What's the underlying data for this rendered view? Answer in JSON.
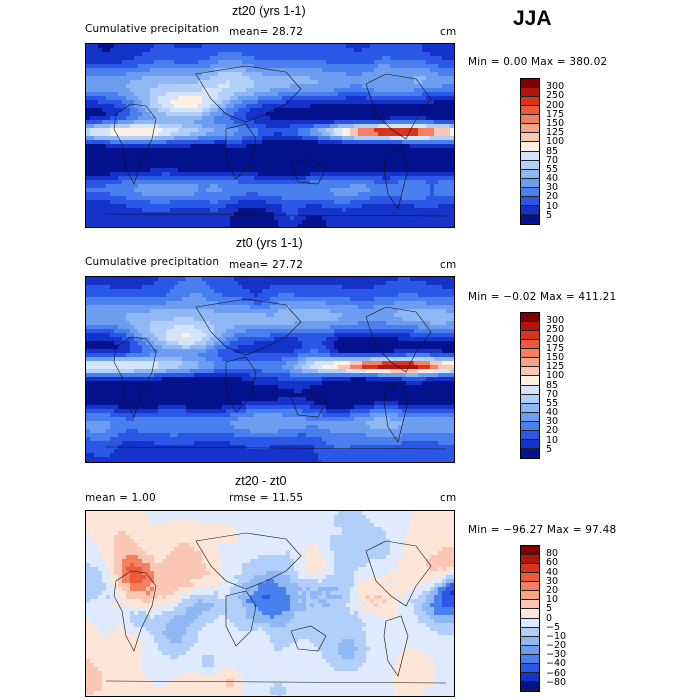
{
  "season_label": "JJA",
  "panels": [
    {
      "title": "zt20 (yrs 1-1)",
      "subtitle": "Cumulative precipitation",
      "mean_text": "mean=   28.72",
      "units": "cm",
      "minmax_text": "Min =    0.00 Max = 380.02",
      "palette": "precip",
      "colorbar_labels": [
        "300",
        "250",
        "200",
        "175",
        "150",
        "125",
        "100",
        "85",
        "70",
        "55",
        "40",
        "30",
        "20",
        "10",
        "5"
      ],
      "colorbar_colors": [
        "#7f0000",
        "#b0160c",
        "#d9341c",
        "#ec5a37",
        "#f58060",
        "#f8a286",
        "#fac7b4",
        "#fdf1e4",
        "#d4e4fb",
        "#b1cff8",
        "#8fb7f3",
        "#6d9df0",
        "#4a7ff0",
        "#2a57e6",
        "#1532cb",
        "#04128e"
      ]
    },
    {
      "title": "zt0 (yrs 1-1)",
      "subtitle": "Cumulative precipitation",
      "mean_text": "mean=   27.72",
      "units": "cm",
      "minmax_text": "Min =  −0.02 Max = 411.21",
      "palette": "precip",
      "colorbar_labels": [
        "300",
        "250",
        "200",
        "175",
        "150",
        "125",
        "100",
        "85",
        "70",
        "55",
        "40",
        "30",
        "20",
        "10",
        "5"
      ],
      "colorbar_colors": [
        "#7f0000",
        "#b0160c",
        "#d9341c",
        "#ec5a37",
        "#f58060",
        "#f8a286",
        "#fac7b4",
        "#fdf1e4",
        "#d4e4fb",
        "#b1cff8",
        "#8fb7f3",
        "#6d9df0",
        "#4a7ff0",
        "#2a57e6",
        "#1532cb",
        "#04128e"
      ]
    },
    {
      "title": "zt20 - zt0",
      "mean_text": "mean =     1.00",
      "rmse_text": "rmse =   11.55",
      "units": "cm",
      "minmax_text": "Min = −96.27 Max =  97.48",
      "palette": "diff",
      "colorbar_labels": [
        "80",
        "60",
        "40",
        "30",
        "20",
        "10",
        "5",
        "0",
        "−5",
        "−10",
        "−20",
        "−30",
        "−40",
        "−60",
        "−80"
      ],
      "colorbar_colors": [
        "#7f0000",
        "#b0160c",
        "#d9341c",
        "#ec5a37",
        "#f58060",
        "#f8a286",
        "#fac7b4",
        "#fde6d8",
        "#dfeafc",
        "#b1cff8",
        "#8fb7f3",
        "#6d9df0",
        "#4a7ff0",
        "#2a57e6",
        "#1532cb",
        "#04128e"
      ]
    }
  ]
}
